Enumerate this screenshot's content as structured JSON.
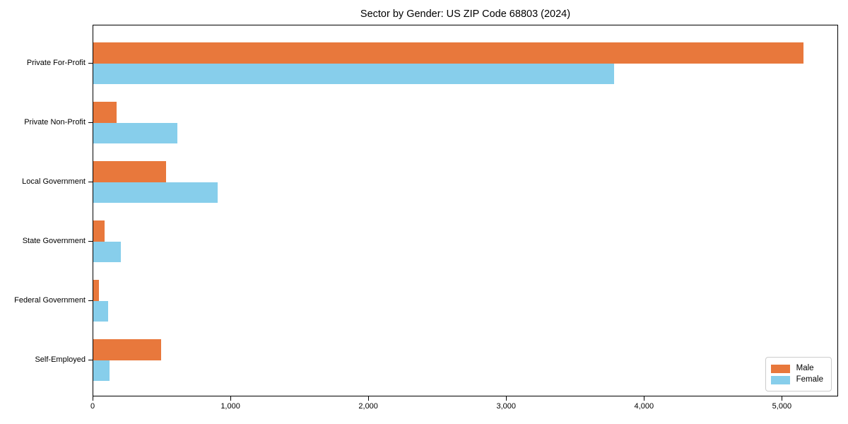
{
  "title": "Sector by Gender: US ZIP Code 68803 (2024)",
  "colors": {
    "male": "#e8783c",
    "female": "#87ceeb",
    "axis": "#000000",
    "legend_border": "#cccccc",
    "background": "#ffffff"
  },
  "legend": {
    "position": "lower right",
    "items": [
      {
        "label": "Male",
        "color": "#e8783c"
      },
      {
        "label": "Female",
        "color": "#87ceeb"
      }
    ]
  },
  "chart_data": {
    "type": "bar",
    "orientation": "horizontal",
    "title": "Sector by Gender: US ZIP Code 68803 (2024)",
    "xlabel": "",
    "ylabel": "",
    "categories": [
      "Private For-Profit",
      "Private Non-Profit",
      "Local Government",
      "State Government",
      "Federal Government",
      "Self-Employed"
    ],
    "series": [
      {
        "name": "Male",
        "color": "#e8783c",
        "values": [
          5150,
          170,
          530,
          80,
          40,
          490
        ]
      },
      {
        "name": "Female",
        "color": "#87ceeb",
        "values": [
          3780,
          610,
          900,
          200,
          110,
          120
        ]
      }
    ],
    "xlim": [
      0,
      5408
    ],
    "x_ticks": [
      0,
      1000,
      2000,
      3000,
      4000,
      5000
    ],
    "x_tick_labels": [
      "0",
      "1,000",
      "2,000",
      "3,000",
      "4,000",
      "5,000"
    ],
    "grid": false,
    "legend_position": "lower right"
  }
}
